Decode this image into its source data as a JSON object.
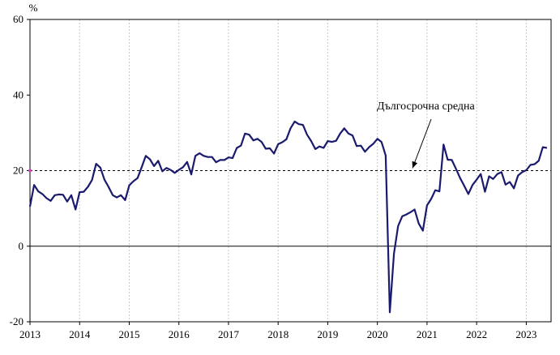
{
  "chart_data": {
    "type": "line",
    "unit_label": "%",
    "ylim": [
      -20,
      60
    ],
    "y_ticks": [
      -20,
      0,
      20,
      40,
      60
    ],
    "xlim": [
      2013,
      2023.5
    ],
    "x_ticks": [
      2013,
      2014,
      2015,
      2016,
      2017,
      2018,
      2019,
      2020,
      2021,
      2022,
      2023
    ],
    "grid": {
      "vertical": true,
      "horizontal": false
    },
    "colors": {
      "series": "#1a1a6e",
      "reference": "#000000",
      "zero_line": "#000000",
      "grid": "#c8c8c8",
      "marker": "#d040c0"
    },
    "reference_line": {
      "value": 20,
      "label": "Дългосрочна средна"
    },
    "series": [
      {
        "x": [
          2013.0,
          2013.083,
          2013.167,
          2013.25,
          2013.333,
          2013.417,
          2013.5,
          2013.583,
          2013.667,
          2013.75,
          2013.833,
          2013.917,
          2014.0,
          2014.083,
          2014.167,
          2014.25,
          2014.333,
          2014.417,
          2014.5,
          2014.583,
          2014.667,
          2014.75,
          2014.833,
          2014.917,
          2015.0,
          2015.083,
          2015.167,
          2015.25,
          2015.333,
          2015.417,
          2015.5,
          2015.583,
          2015.667,
          2015.75,
          2015.833,
          2015.917,
          2016.0,
          2016.083,
          2016.167,
          2016.25,
          2016.333,
          2016.417,
          2016.5,
          2016.583,
          2016.667,
          2016.75,
          2016.833,
          2016.917,
          2017.0,
          2017.083,
          2017.167,
          2017.25,
          2017.333,
          2017.417,
          2017.5,
          2017.583,
          2017.667,
          2017.75,
          2017.833,
          2017.917,
          2018.0,
          2018.083,
          2018.167,
          2018.25,
          2018.333,
          2018.417,
          2018.5,
          2018.583,
          2018.667,
          2018.75,
          2018.833,
          2018.917,
          2019.0,
          2019.083,
          2019.167,
          2019.25,
          2019.333,
          2019.417,
          2019.5,
          2019.583,
          2019.667,
          2019.75,
          2019.833,
          2019.917,
          2020.0,
          2020.083,
          2020.167,
          2020.25,
          2020.333,
          2020.417,
          2020.5,
          2020.583,
          2020.667,
          2020.75,
          2020.833,
          2020.917,
          2021.0,
          2021.083,
          2021.167,
          2021.25,
          2021.333,
          2021.417,
          2021.5,
          2021.583,
          2021.667,
          2021.75,
          2021.833,
          2021.917,
          2022.0,
          2022.083,
          2022.167,
          2022.25,
          2022.333,
          2022.417,
          2022.5,
          2022.583,
          2022.667,
          2022.75,
          2022.833,
          2022.917,
          2023.0,
          2023.083,
          2023.167,
          2023.25,
          2023.333,
          2023.417
        ],
        "y": [
          10.5,
          16.2,
          14.5,
          13.8,
          12.7,
          12.0,
          13.5,
          13.7,
          13.6,
          11.8,
          13.5,
          9.7,
          14.3,
          14.4,
          15.7,
          17.5,
          21.8,
          20.8,
          17.6,
          15.7,
          13.5,
          12.9,
          13.5,
          12.2,
          16.1,
          17.2,
          18.0,
          20.9,
          23.9,
          23.0,
          21.2,
          22.6,
          19.8,
          20.7,
          20.2,
          19.4,
          20.2,
          20.9,
          22.3,
          19.0,
          23.9,
          24.6,
          23.9,
          23.6,
          23.6,
          22.2,
          22.8,
          22.8,
          23.5,
          23.3,
          26.0,
          26.6,
          29.8,
          29.5,
          28.0,
          28.4,
          27.6,
          25.8,
          25.9,
          24.5,
          27.0,
          27.5,
          28.3,
          31.2,
          33.0,
          32.3,
          32.1,
          29.5,
          27.8,
          25.7,
          26.4,
          26.0,
          27.8,
          27.6,
          27.9,
          29.8,
          31.2,
          29.8,
          29.3,
          26.5,
          26.6,
          25.0,
          26.2,
          27.1,
          28.4,
          27.6,
          24.0,
          -17.5,
          -2.0,
          5.3,
          7.9,
          8.4,
          9.0,
          9.7,
          6.0,
          4.1,
          10.8,
          12.5,
          14.8,
          14.5,
          26.9,
          22.9,
          22.8,
          20.5,
          18.0,
          16.0,
          13.8,
          16.2,
          17.6,
          19.1,
          14.4,
          18.5,
          17.8,
          19.1,
          19.6,
          16.3,
          17.0,
          15.3,
          18.7,
          19.6,
          20.1,
          21.5,
          21.7,
          22.6,
          26.2,
          26.0
        ]
      }
    ]
  }
}
